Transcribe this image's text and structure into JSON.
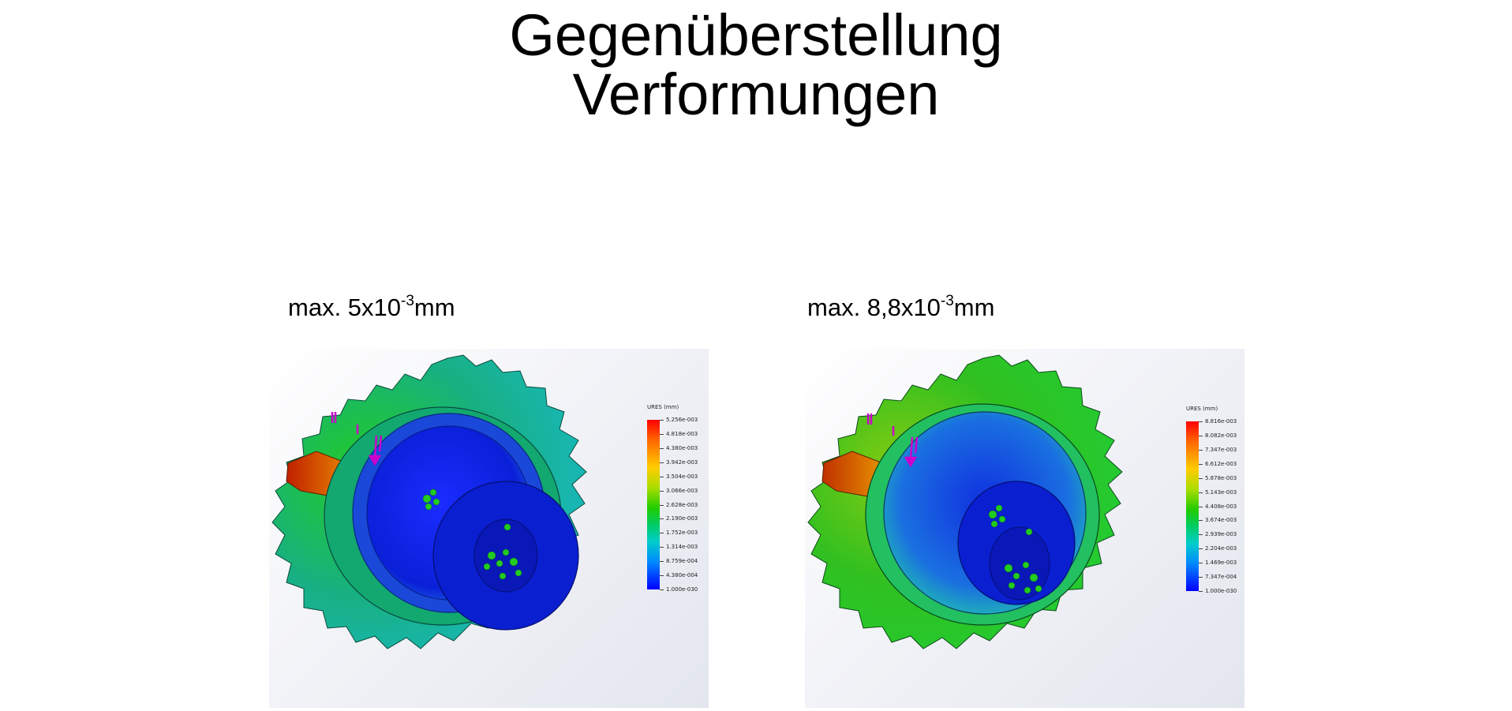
{
  "title": {
    "line1": "Gegenüberstellung",
    "line2": "Verformungen"
  },
  "left": {
    "caption_prefix": "max. 5x10",
    "caption_exp": "-3",
    "caption_unit": "mm",
    "legend": {
      "title": "URES (mm)",
      "ticks": [
        "5.256e-003",
        "4.818e-003",
        "4.380e-003",
        "3.942e-003",
        "3.504e-003",
        "3.066e-003",
        "2.628e-003",
        "2.190e-003",
        "1.752e-003",
        "1.314e-003",
        "8.759e-004",
        "4.380e-004",
        "1.000e-030"
      ]
    }
  },
  "right": {
    "caption_prefix": "max. 8,8x10",
    "caption_exp": "-3",
    "caption_unit": "mm",
    "legend": {
      "title": "URES (mm)",
      "ticks": [
        "8.816e-003",
        "8.082e-003",
        "7.347e-003",
        "6.612e-003",
        "5.878e-003",
        "5.143e-003",
        "4.408e-003",
        "3.674e-003",
        "2.939e-003",
        "2.204e-003",
        "1.469e-003",
        "7.347e-004",
        "1.000e-030"
      ]
    }
  },
  "colors": {
    "scale_max": "#ff0000",
    "scale_mid": "#22cc00",
    "scale_min": "#0000ff",
    "load_arrows": "#cc00cc"
  }
}
